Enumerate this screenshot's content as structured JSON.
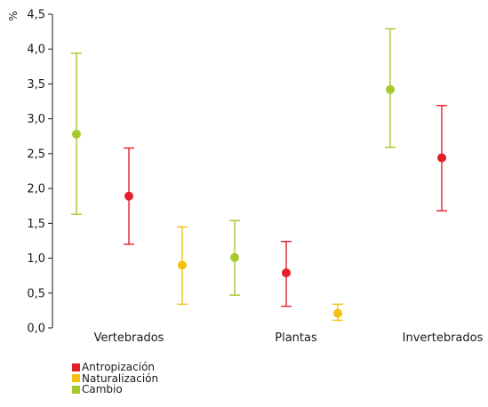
{
  "chart_data": {
    "type": "scatter",
    "subtype": "error-bar",
    "ylabel": "%",
    "ylim": [
      0,
      4.5
    ],
    "yticks": [
      "0,0",
      "0,5",
      "1,0",
      "1,5",
      "2,0",
      "2,5",
      "3,0",
      "3,5",
      "4,0",
      "4,5"
    ],
    "categories": [
      "Vertebrados",
      "Plantas",
      "Invertebrados"
    ],
    "colors": {
      "Antropización": "#e3202a",
      "Naturalización": "#f5c211",
      "Cambio": "#a6c92c"
    },
    "legend": [
      "Antropización",
      "Naturalización",
      "Cambio"
    ],
    "legend_position": "bottom-left",
    "series": [
      {
        "name": "Cambio",
        "points": [
          {
            "category": "Vertebrados",
            "value": 2.78,
            "low": 1.63,
            "high": 3.94
          },
          {
            "category": "Plantas",
            "value": 1.01,
            "low": 0.47,
            "high": 1.54
          },
          {
            "category": "Invertebrados",
            "value": 3.42,
            "low": 2.59,
            "high": 4.29
          }
        ]
      },
      {
        "name": "Antropización",
        "points": [
          {
            "category": "Vertebrados",
            "value": 1.89,
            "low": 1.2,
            "high": 2.58
          },
          {
            "category": "Plantas",
            "value": 0.79,
            "low": 0.31,
            "high": 1.24
          },
          {
            "category": "Invertebrados",
            "value": 2.44,
            "low": 1.68,
            "high": 3.19
          }
        ]
      },
      {
        "name": "Naturalización",
        "points": [
          {
            "category": "Vertebrados",
            "value": 0.9,
            "low": 0.34,
            "high": 1.45
          },
          {
            "category": "Plantas",
            "value": 0.21,
            "low": 0.11,
            "high": 0.34
          }
        ]
      }
    ]
  }
}
